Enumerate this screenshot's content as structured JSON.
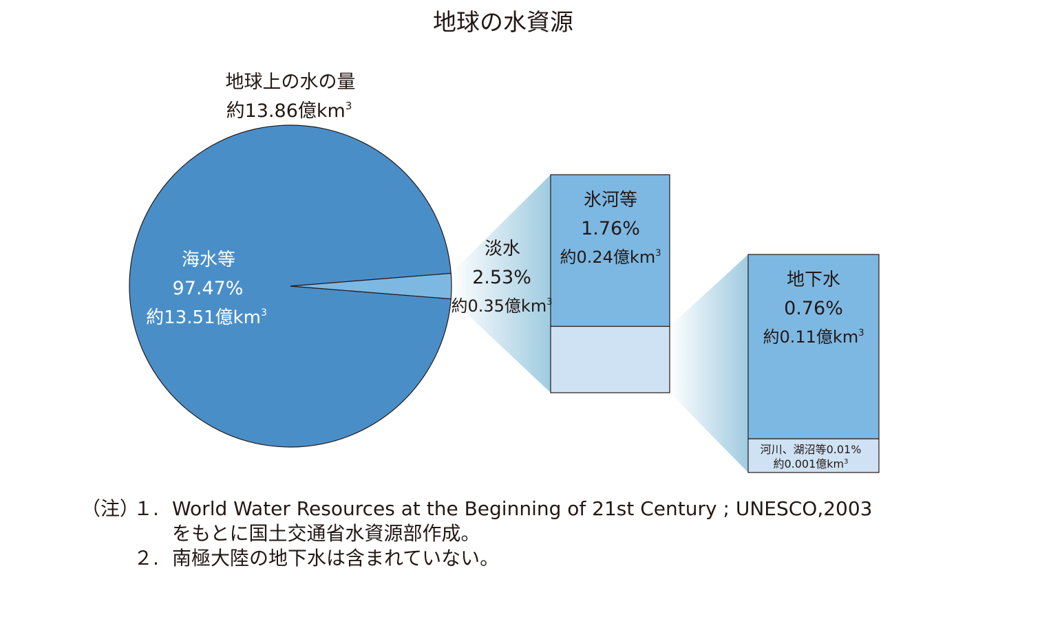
{
  "title": "地球の水資源",
  "chart_data": {
    "type": "pie",
    "total": {
      "label": "地球上の水の量",
      "amount": "約13.86億km",
      "sup": "3"
    },
    "slices": [
      {
        "label": "海水等",
        "percent_text": "97.47%",
        "amount": "約13.51億km",
        "sup": "3",
        "value": 97.47
      },
      {
        "label": "淡水",
        "percent_text": "2.53%",
        "amount": "約0.35億km",
        "sup": "3",
        "value": 2.53
      }
    ],
    "freshwater_breakdown": [
      {
        "label": "氷河等",
        "percent_text": "1.76%",
        "amount": "約0.24億km",
        "sup": "3",
        "value": 1.76
      },
      {
        "label": "",
        "value": 0.77
      }
    ],
    "groundwater_breakdown": [
      {
        "label": "地下水",
        "percent_text": "0.76%",
        "amount": "約0.11億km",
        "sup": "3",
        "value": 0.76
      },
      {
        "label": "河川、湖沼等0.01%",
        "amount": "約0.001億km",
        "sup": "3",
        "value": 0.01
      }
    ],
    "colors": {
      "seawater": "#4a8ec8",
      "fresh": "#7db8e3",
      "light": "#cfe2f3",
      "gradient_end": "#9fcbe0"
    }
  },
  "notes": {
    "lead": "（注）",
    "items": [
      {
        "num": "１.",
        "lines": [
          "World Water Resources at the Beginning of 21st Century ; UNESCO,2003",
          "をもとに国土交通省水資源部作成。"
        ]
      },
      {
        "num": "２.",
        "lines": [
          "南極大陸の地下水は含まれていない。"
        ]
      }
    ]
  }
}
